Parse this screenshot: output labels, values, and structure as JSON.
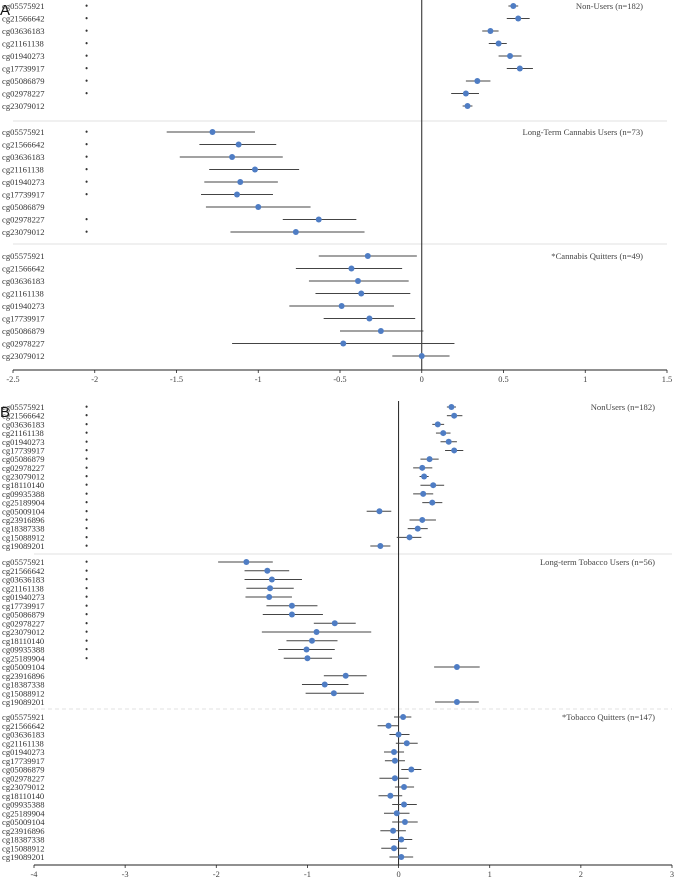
{
  "chart_data": [
    {
      "panel": "A",
      "type": "forest",
      "xlim": [
        -2.5,
        1.5
      ],
      "xticks": [
        "-2.5",
        "-2",
        "-1.5",
        "-1",
        "-0.5",
        "0",
        "0.5",
        "1",
        "1.5"
      ],
      "groups": [
        {
          "label": "Non-Users (n=182)",
          "rows": [
            {
              "probe": "cg05575921",
              "star": "•",
              "est": 0.56,
              "lo": 0.53,
              "hi": 0.59
            },
            {
              "probe": "cg21566642",
              "star": "•",
              "est": 0.59,
              "lo": 0.52,
              "hi": 0.66
            },
            {
              "probe": "cg03636183",
              "star": "•",
              "est": 0.42,
              "lo": 0.37,
              "hi": 0.47
            },
            {
              "probe": "cg21161138",
              "star": "•",
              "est": 0.47,
              "lo": 0.41,
              "hi": 0.52
            },
            {
              "probe": "cg01940273",
              "star": "•",
              "est": 0.54,
              "lo": 0.47,
              "hi": 0.61
            },
            {
              "probe": "cg17739917",
              "star": "•",
              "est": 0.6,
              "lo": 0.52,
              "hi": 0.68
            },
            {
              "probe": "cg05086879",
              "star": "•",
              "est": 0.34,
              "lo": 0.27,
              "hi": 0.42
            },
            {
              "probe": "cg02978227",
              "star": "•",
              "est": 0.27,
              "lo": 0.18,
              "hi": 0.35
            },
            {
              "probe": "cg23079012",
              "star": "",
              "est": 0.28,
              "lo": 0.25,
              "hi": 0.31
            }
          ]
        },
        {
          "label": "Long-Term Cannabis Users (n=73)",
          "rows": [
            {
              "probe": "cg05575921",
              "star": "•",
              "est": -1.28,
              "lo": -1.56,
              "hi": -1.02
            },
            {
              "probe": "cg21566642",
              "star": "•",
              "est": -1.12,
              "lo": -1.36,
              "hi": -0.89
            },
            {
              "probe": "cg03636183",
              "star": "•",
              "est": -1.16,
              "lo": -1.48,
              "hi": -0.85
            },
            {
              "probe": "cg21161138",
              "star": "•",
              "est": -1.02,
              "lo": -1.3,
              "hi": -0.75
            },
            {
              "probe": "cg01940273",
              "star": "•",
              "est": -1.11,
              "lo": -1.33,
              "hi": -0.88
            },
            {
              "probe": "cg17739917",
              "star": "•",
              "est": -1.13,
              "lo": -1.35,
              "hi": -0.91
            },
            {
              "probe": "cg05086879",
              "star": "",
              "est": -1.0,
              "lo": -1.32,
              "hi": -0.68
            },
            {
              "probe": "cg02978227",
              "star": "•",
              "est": -0.63,
              "lo": -0.85,
              "hi": -0.4
            },
            {
              "probe": "cg23079012",
              "star": "•",
              "est": -0.77,
              "lo": -1.17,
              "hi": -0.35
            }
          ]
        },
        {
          "label": "*Cannabis Quitters (n=49)",
          "rows": [
            {
              "probe": "cg05575921",
              "star": "",
              "est": -0.33,
              "lo": -0.63,
              "hi": -0.03
            },
            {
              "probe": "cg21566642",
              "star": "",
              "est": -0.43,
              "lo": -0.77,
              "hi": -0.12
            },
            {
              "probe": "cg03636183",
              "star": "",
              "est": -0.39,
              "lo": -0.69,
              "hi": -0.08
            },
            {
              "probe": "cg21161138",
              "star": "",
              "est": -0.37,
              "lo": -0.65,
              "hi": -0.07
            },
            {
              "probe": "cg01940273",
              "star": "",
              "est": -0.49,
              "lo": -0.81,
              "hi": -0.17
            },
            {
              "probe": "cg17739917",
              "star": "",
              "est": -0.32,
              "lo": -0.6,
              "hi": -0.04
            },
            {
              "probe": "cg05086879",
              "star": "",
              "est": -0.25,
              "lo": -0.5,
              "hi": 0.01
            },
            {
              "probe": "cg02978227",
              "star": "",
              "est": -0.48,
              "lo": -1.16,
              "hi": 0.2
            },
            {
              "probe": "cg23079012",
              "star": "",
              "est": 0.0,
              "lo": -0.18,
              "hi": 0.17
            }
          ]
        }
      ]
    },
    {
      "panel": "B",
      "type": "forest",
      "xlim": [
        -4,
        3
      ],
      "xticks": [
        "-4",
        "-3",
        "-2",
        "-1",
        "0",
        "1",
        "2",
        "3"
      ],
      "groups": [
        {
          "label": "NonUsers (n=182)",
          "rows": [
            {
              "probe": "cg05575921",
              "star": "•",
              "est": 0.58,
              "lo": 0.53,
              "hi": 0.63
            },
            {
              "probe": "cg21566642",
              "star": "•",
              "est": 0.61,
              "lo": 0.53,
              "hi": 0.7
            },
            {
              "probe": "cg03636183",
              "star": "•",
              "est": 0.43,
              "lo": 0.37,
              "hi": 0.5
            },
            {
              "probe": "cg21161138",
              "star": "•",
              "est": 0.49,
              "lo": 0.41,
              "hi": 0.57
            },
            {
              "probe": "cg01940273",
              "star": "•",
              "est": 0.55,
              "lo": 0.46,
              "hi": 0.64
            },
            {
              "probe": "cg17739917",
              "star": "•",
              "est": 0.61,
              "lo": 0.51,
              "hi": 0.71
            },
            {
              "probe": "cg05086879",
              "star": "•",
              "est": 0.34,
              "lo": 0.24,
              "hi": 0.44
            },
            {
              "probe": "cg02978227",
              "star": "•",
              "est": 0.26,
              "lo": 0.16,
              "hi": 0.37
            },
            {
              "probe": "cg23079012",
              "star": "•",
              "est": 0.28,
              "lo": 0.23,
              "hi": 0.33
            },
            {
              "probe": "cg18110140",
              "star": "•",
              "est": 0.38,
              "lo": 0.24,
              "hi": 0.5
            },
            {
              "probe": "cg09935388",
              "star": "•",
              "est": 0.27,
              "lo": 0.16,
              "hi": 0.38
            },
            {
              "probe": "cg25189904",
              "star": "•",
              "est": 0.37,
              "lo": 0.26,
              "hi": 0.48
            },
            {
              "probe": "cg05009104",
              "star": "•",
              "est": -0.21,
              "lo": -0.35,
              "hi": -0.08
            },
            {
              "probe": "cg23916896",
              "star": "•",
              "est": 0.26,
              "lo": 0.12,
              "hi": 0.41
            },
            {
              "probe": "cg18387338",
              "star": "•",
              "est": 0.21,
              "lo": 0.1,
              "hi": 0.32
            },
            {
              "probe": "cg15088912",
              "star": "•",
              "est": 0.12,
              "lo": -0.02,
              "hi": 0.25
            },
            {
              "probe": "cg19089201",
              "star": "•",
              "est": -0.2,
              "lo": -0.31,
              "hi": -0.09
            }
          ]
        },
        {
          "label": "Long-term Tobacco Users (n=56)",
          "rows": [
            {
              "probe": "cg05575921",
              "star": "•",
              "est": -1.67,
              "lo": -1.98,
              "hi": -1.38
            },
            {
              "probe": "cg21566642",
              "star": "•",
              "est": -1.44,
              "lo": -1.69,
              "hi": -1.2
            },
            {
              "probe": "cg03636183",
              "star": "•",
              "est": -1.39,
              "lo": -1.69,
              "hi": -1.06
            },
            {
              "probe": "cg21161138",
              "star": "•",
              "est": -1.41,
              "lo": -1.67,
              "hi": -1.15
            },
            {
              "probe": "cg01940273",
              "star": "•",
              "est": -1.42,
              "lo": -1.68,
              "hi": -1.17
            },
            {
              "probe": "cg17739917",
              "star": "•",
              "est": -1.17,
              "lo": -1.45,
              "hi": -0.89
            },
            {
              "probe": "cg05086879",
              "star": "•",
              "est": -1.17,
              "lo": -1.49,
              "hi": -0.83
            },
            {
              "probe": "cg02978227",
              "star": "•",
              "est": -0.7,
              "lo": -0.93,
              "hi": -0.47
            },
            {
              "probe": "cg23079012",
              "star": "•",
              "est": -0.9,
              "lo": -1.5,
              "hi": -0.3
            },
            {
              "probe": "cg18110140",
              "star": "•",
              "est": -0.95,
              "lo": -1.23,
              "hi": -0.67
            },
            {
              "probe": "cg09935388",
              "star": "•",
              "est": -1.01,
              "lo": -1.32,
              "hi": -0.7
            },
            {
              "probe": "cg25189904",
              "star": "•",
              "est": -1.0,
              "lo": -1.26,
              "hi": -0.73
            },
            {
              "probe": "cg05009104",
              "star": "",
              "est": 0.64,
              "lo": 0.39,
              "hi": 0.89
            },
            {
              "probe": "cg23916896",
              "star": "",
              "est": -0.58,
              "lo": -0.82,
              "hi": -0.35
            },
            {
              "probe": "cg18387338",
              "star": "",
              "est": -0.81,
              "lo": -1.06,
              "hi": -0.55
            },
            {
              "probe": "cg15088912",
              "star": "",
              "est": -0.71,
              "lo": -1.02,
              "hi": -0.38
            },
            {
              "probe": "cg19089201",
              "star": "",
              "est": 0.64,
              "lo": 0.4,
              "hi": 0.88
            }
          ]
        },
        {
          "label": "*Tobacco Quitters (n=147)",
          "rows": [
            {
              "probe": "cg05575921",
              "star": "",
              "est": 0.05,
              "lo": -0.05,
              "hi": 0.14
            },
            {
              "probe": "cg21566642",
              "star": "",
              "est": -0.11,
              "lo": -0.23,
              "hi": 0.0
            },
            {
              "probe": "cg03636183",
              "star": "",
              "est": 0.0,
              "lo": -0.1,
              "hi": 0.12
            },
            {
              "probe": "cg21161138",
              "star": "",
              "est": 0.09,
              "lo": -0.03,
              "hi": 0.21
            },
            {
              "probe": "cg01940273",
              "star": "",
              "est": -0.05,
              "lo": -0.16,
              "hi": 0.06
            },
            {
              "probe": "cg17739917",
              "star": "",
              "est": -0.04,
              "lo": -0.15,
              "hi": 0.07
            },
            {
              "probe": "cg05086879",
              "star": "",
              "est": 0.14,
              "lo": 0.03,
              "hi": 0.25
            },
            {
              "probe": "cg02978227",
              "star": "",
              "est": -0.04,
              "lo": -0.21,
              "hi": 0.11
            },
            {
              "probe": "cg23079012",
              "star": "",
              "est": 0.06,
              "lo": -0.04,
              "hi": 0.17
            },
            {
              "probe": "cg18110140",
              "star": "",
              "est": -0.09,
              "lo": -0.22,
              "hi": 0.04
            },
            {
              "probe": "cg09935388",
              "star": "",
              "est": 0.06,
              "lo": -0.07,
              "hi": 0.2
            },
            {
              "probe": "cg25189904",
              "star": "",
              "est": -0.02,
              "lo": -0.16,
              "hi": 0.12
            },
            {
              "probe": "cg05009104",
              "star": "",
              "est": 0.07,
              "lo": -0.07,
              "hi": 0.21
            },
            {
              "probe": "cg23916896",
              "star": "",
              "est": -0.06,
              "lo": -0.2,
              "hi": 0.08
            },
            {
              "probe": "cg18387338",
              "star": "",
              "est": 0.03,
              "lo": -0.09,
              "hi": 0.15
            },
            {
              "probe": "cg15088912",
              "star": "",
              "est": -0.05,
              "lo": -0.19,
              "hi": 0.09
            },
            {
              "probe": "cg19089201",
              "star": "",
              "est": 0.03,
              "lo": -0.1,
              "hi": 0.16
            }
          ]
        }
      ]
    }
  ],
  "colors": {
    "marker": "#4f7dc4",
    "line": "#444444",
    "axis": "#222222",
    "separator": "#d8d8d8"
  }
}
